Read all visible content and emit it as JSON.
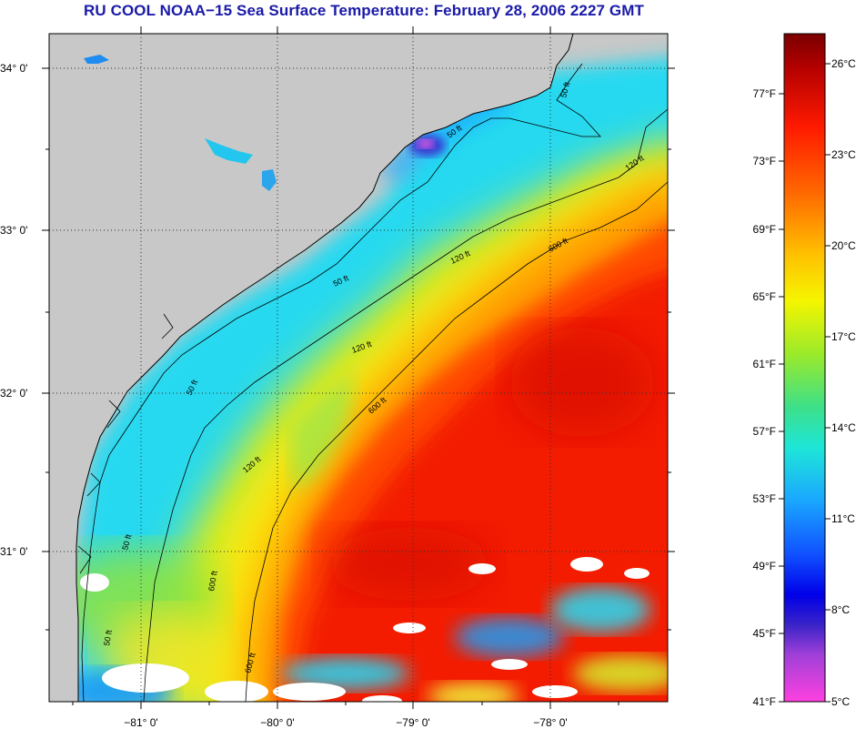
{
  "title": "RU COOL  NOAA−15  Sea Surface Temperature:  February 28, 2006 2227 GMT",
  "map": {
    "lat_labels": [
      "34° 0'",
      "33° 0'",
      "32° 0'",
      "31° 0'"
    ],
    "lon_labels": [
      "−81° 0'",
      "−80° 0'",
      "−79° 0'",
      "−78° 0'"
    ],
    "contour_labels": [
      "50 ft",
      "50 ft",
      "120 ft",
      "600 ft",
      "50 ft",
      "120 ft",
      "50 ft",
      "600 ft",
      "120 ft",
      "50 ft",
      "120 ft",
      "600 ft",
      "50 ft",
      "600 ft"
    ],
    "land_color": "#c8c8c8"
  },
  "colorbar": {
    "fahrenheit_labels": [
      "77°F",
      "73°F",
      "69°F",
      "65°F",
      "61°F",
      "57°F",
      "53°F",
      "49°F",
      "45°F",
      "41°F"
    ],
    "celsius_labels": [
      "26°C",
      "23°C",
      "20°C",
      "17°C",
      "14°C",
      "11°C",
      "8°C",
      "5°C"
    ]
  }
}
